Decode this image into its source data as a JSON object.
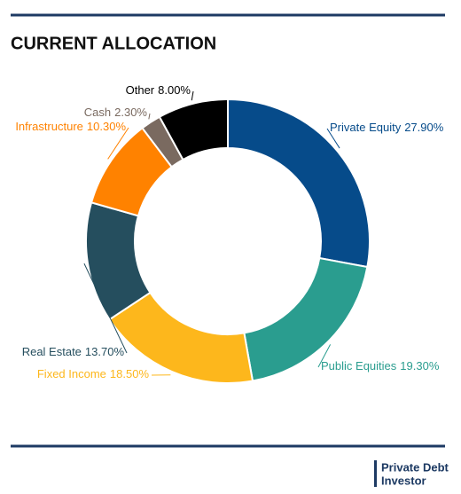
{
  "chart_data": {
    "type": "donut",
    "title": "CURRENT ALLOCATION",
    "categories": [
      "Private Equity",
      "Public Equities",
      "Fixed Income",
      "Real Estate",
      "Infrastructure",
      "Cash",
      "Other"
    ],
    "values": [
      27.9,
      19.3,
      18.5,
      13.7,
      10.3,
      2.3,
      8.0
    ],
    "value_labels": [
      "27.90%",
      "19.30%",
      "18.50%",
      "13.70%",
      "10.30%",
      "2.30%",
      "8.00%"
    ],
    "colors": [
      "#064b8a",
      "#2a9d8f",
      "#fdb71c",
      "#254e5e",
      "#ff8200",
      "#7a6a60",
      "#000000"
    ]
  },
  "logo": {
    "line1": "Private Debt",
    "line2": "Investor"
  }
}
